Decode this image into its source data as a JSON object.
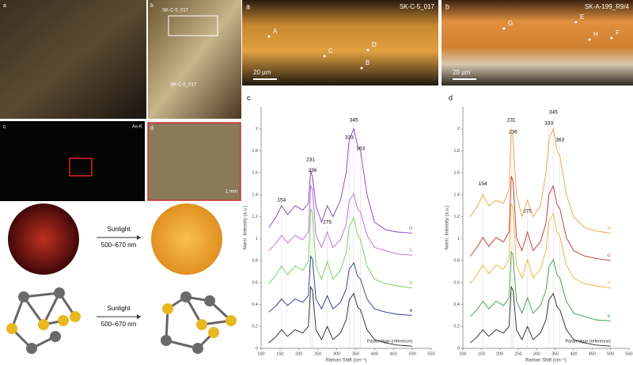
{
  "left_panels": {
    "a_label": "a",
    "b_label": "b",
    "b_spots": [
      "SK-C-5_017",
      "SK-C-5_017"
    ],
    "c_label": "c",
    "c_element": "As-K",
    "d_label": "d",
    "d_scale": "1 mm"
  },
  "transformations": [
    {
      "label": "Sunlight",
      "range": "500–670 nm"
    },
    {
      "label": "Sunlight",
      "range": "500–670 nm"
    }
  ],
  "cross_sections": [
    {
      "panel": "a",
      "sample": "SK-C-5_017",
      "points": [
        "A",
        "B",
        "C",
        "D"
      ],
      "scale": "20 µm"
    },
    {
      "panel": "b",
      "sample": "SK-A-199_R9/4",
      "points": [
        "G",
        "E",
        "H",
        "F"
      ],
      "scale": "20 µm"
    }
  ],
  "chart_data": [
    {
      "type": "line",
      "panel": "c",
      "x_label": "Raman Shift (cm⁻¹)",
      "y_label": "Norm. Intensity (a.u.)",
      "x": [
        120,
        140,
        154,
        170,
        190,
        210,
        225,
        231,
        236,
        245,
        260,
        275,
        290,
        310,
        325,
        333,
        345,
        355,
        363,
        380,
        400,
        430,
        460,
        500
      ],
      "xlim": [
        100,
        550
      ],
      "xticks": [
        100,
        150,
        200,
        250,
        300,
        350,
        400,
        450,
        500,
        550
      ],
      "ylim": [
        0,
        2.2
      ],
      "yticks": [
        0,
        0.2,
        0.4,
        0.6,
        0.8,
        1,
        1.2,
        1.4,
        1.6,
        1.8,
        2
      ],
      "series": [
        {
          "name": "D",
          "color": "#7b3fbf",
          "values": [
            1.1,
            1.2,
            1.3,
            1.22,
            1.3,
            1.26,
            1.32,
            1.62,
            1.56,
            1.3,
            1.15,
            1.3,
            1.2,
            1.35,
            1.6,
            1.9,
            2.0,
            1.85,
            1.8,
            1.4,
            1.15,
            1.08,
            1.06,
            1.05
          ]
        },
        {
          "name": "C",
          "color": "#c060e0",
          "values": [
            0.89,
            0.96,
            1.03,
            0.96,
            1.03,
            0.99,
            1.06,
            1.48,
            1.45,
            1.03,
            0.92,
            1.06,
            0.92,
            0.99,
            1.13,
            1.34,
            1.41,
            1.27,
            1.24,
            1.03,
            0.92,
            0.89,
            0.86,
            0.85
          ]
        },
        {
          "name": "B",
          "color": "#6fd04f",
          "values": [
            0.59,
            0.67,
            0.75,
            0.67,
            0.75,
            0.71,
            0.79,
            1.27,
            1.23,
            0.75,
            0.63,
            0.79,
            0.63,
            0.71,
            0.87,
            1.11,
            1.19,
            1.03,
            0.99,
            0.75,
            0.63,
            0.59,
            0.57,
            0.55
          ]
        },
        {
          "name": "A",
          "color": "#2a2f8f",
          "values": [
            0.33,
            0.39,
            0.45,
            0.39,
            0.45,
            0.42,
            0.48,
            0.84,
            0.81,
            0.45,
            0.36,
            0.48,
            0.36,
            0.42,
            0.54,
            0.72,
            0.78,
            0.66,
            0.63,
            0.45,
            0.36,
            0.33,
            0.31,
            0.3
          ]
        },
        {
          "name": "Pararealgar (reference)",
          "color": "#222222",
          "values": [
            0.05,
            0.11,
            0.17,
            0.11,
            0.17,
            0.14,
            0.2,
            0.56,
            0.53,
            0.17,
            0.08,
            0.2,
            0.08,
            0.14,
            0.26,
            0.44,
            0.5,
            0.38,
            0.35,
            0.17,
            0.08,
            0.05,
            0.03,
            0.02
          ]
        }
      ],
      "peaks": [
        {
          "x": 154,
          "y": 1.35,
          "label": "154"
        },
        {
          "x": 231,
          "y": 1.72,
          "label": "231"
        },
        {
          "x": 236,
          "y": 1.62,
          "label": "236"
        },
        {
          "x": 275,
          "y": 1.15,
          "label": "275"
        },
        {
          "x": 333,
          "y": 1.92,
          "label": "333"
        },
        {
          "x": 345,
          "y": 2.08,
          "label": "345"
        },
        {
          "x": 363,
          "y": 1.82,
          "label": "363"
        }
      ]
    },
    {
      "type": "line",
      "panel": "d",
      "x_label": "Raman Shift (cm⁻¹)",
      "y_label": "Norm. Intensity (a.u.)",
      "x": [
        120,
        140,
        154,
        170,
        190,
        210,
        225,
        231,
        236,
        245,
        260,
        275,
        290,
        310,
        325,
        333,
        345,
        355,
        363,
        380,
        400,
        430,
        460,
        500
      ],
      "xlim": [
        100,
        550
      ],
      "xticks": [
        100,
        150,
        200,
        250,
        300,
        350,
        400,
        450,
        500,
        550
      ],
      "ylim": [
        0,
        2.2
      ],
      "yticks": [
        0,
        0.2,
        0.4,
        0.6,
        0.8,
        1,
        1.2,
        1.4,
        1.6,
        1.8,
        2
      ],
      "series": [
        {
          "name": "H",
          "color": "#f0a040",
          "values": [
            1.2,
            1.3,
            1.4,
            1.3,
            1.35,
            1.32,
            1.45,
            2.0,
            1.9,
            1.4,
            1.2,
            1.35,
            1.2,
            1.3,
            1.6,
            1.9,
            2.0,
            1.8,
            1.75,
            1.4,
            1.2,
            1.1,
            1.07,
            1.05
          ]
        },
        {
          "name": "G",
          "color": "#c03030",
          "values": [
            0.84,
            0.93,
            1.01,
            0.93,
            1.01,
            0.97,
            1.06,
            1.57,
            1.52,
            1.01,
            0.89,
            1.06,
            0.89,
            0.97,
            1.14,
            1.4,
            1.48,
            1.31,
            1.27,
            1.01,
            0.89,
            0.84,
            0.82,
            0.8
          ]
        },
        {
          "name": "F",
          "color": "#f0b030",
          "values": [
            0.59,
            0.68,
            0.76,
            0.68,
            0.76,
            0.72,
            0.81,
            1.32,
            1.27,
            0.76,
            0.64,
            0.81,
            0.64,
            0.72,
            0.89,
            1.15,
            1.23,
            1.06,
            1.02,
            0.76,
            0.64,
            0.59,
            0.57,
            0.55
          ]
        },
        {
          "name": "E",
          "color": "#3a9a4a",
          "values": [
            0.29,
            0.36,
            0.43,
            0.36,
            0.43,
            0.39,
            0.46,
            0.88,
            0.85,
            0.43,
            0.32,
            0.46,
            0.32,
            0.39,
            0.53,
            0.74,
            0.81,
            0.67,
            0.64,
            0.43,
            0.32,
            0.29,
            0.26,
            0.25
          ]
        },
        {
          "name": "Pararealgar (reference)",
          "color": "#222222",
          "values": [
            0.05,
            0.11,
            0.17,
            0.11,
            0.17,
            0.14,
            0.2,
            0.56,
            0.53,
            0.17,
            0.08,
            0.2,
            0.08,
            0.14,
            0.26,
            0.44,
            0.5,
            0.38,
            0.35,
            0.17,
            0.08,
            0.05,
            0.03,
            0.02
          ]
        }
      ],
      "peaks": [
        {
          "x": 154,
          "y": 1.5,
          "label": "154"
        },
        {
          "x": 231,
          "y": 2.08,
          "label": "231"
        },
        {
          "x": 236,
          "y": 1.97,
          "label": "236"
        },
        {
          "x": 275,
          "y": 1.25,
          "label": "275"
        },
        {
          "x": 333,
          "y": 2.05,
          "label": "333"
        },
        {
          "x": 345,
          "y": 2.15,
          "label": "345"
        },
        {
          "x": 363,
          "y": 1.9,
          "label": "363"
        }
      ]
    }
  ]
}
